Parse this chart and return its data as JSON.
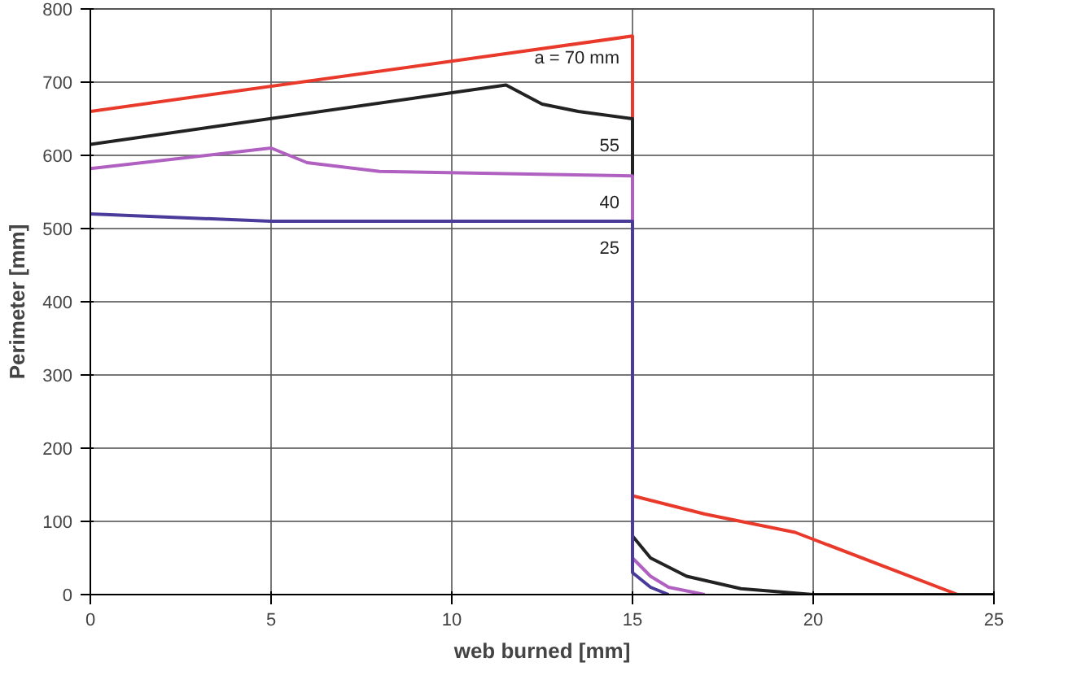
{
  "chart_data": {
    "type": "line",
    "xlabel": "web burned [mm]",
    "ylabel": "Perimeter [mm]",
    "xlim": [
      0,
      25
    ],
    "ylim": [
      0,
      800
    ],
    "xticks": [
      0,
      5,
      10,
      15,
      20,
      25
    ],
    "yticks": [
      0,
      100,
      200,
      300,
      400,
      500,
      600,
      700,
      800
    ],
    "grid": true,
    "line_style": "solid",
    "series": [
      {
        "name": "a = 70 mm",
        "color": "#e8392b",
        "x": [
          0,
          15,
          15,
          17,
          19.5,
          24,
          25
        ],
        "values": [
          660,
          763,
          135,
          110,
          85,
          0,
          0
        ]
      },
      {
        "name": "55",
        "color": "#222222",
        "x": [
          0,
          11.5,
          12.5,
          13.5,
          15,
          15,
          15.5,
          16.5,
          18,
          20,
          25
        ],
        "values": [
          615,
          696,
          670,
          660,
          650,
          80,
          50,
          25,
          8,
          0,
          0
        ]
      },
      {
        "name": "40",
        "color": "#b060c0",
        "x": [
          0,
          5,
          6,
          8,
          15,
          15,
          15.5,
          16,
          17
        ],
        "values": [
          582,
          610,
          590,
          578,
          572,
          50,
          25,
          10,
          0
        ]
      },
      {
        "name": "25",
        "color": "#4a3a9a",
        "x": [
          0,
          5,
          15,
          15,
          15.5,
          16
        ],
        "values": [
          520,
          510,
          510,
          30,
          10,
          0
        ]
      }
    ]
  }
}
